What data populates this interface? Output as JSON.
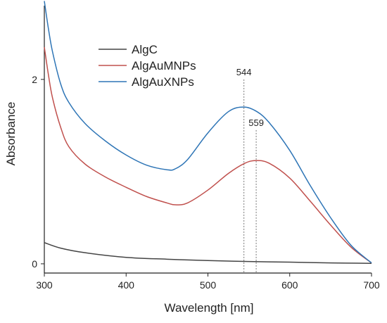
{
  "chart_data": {
    "type": "line",
    "title": "",
    "xlabel": "Wavelength [nm]",
    "ylabel": "Absorbance",
    "xlim": [
      300,
      700
    ],
    "ylim": [
      -0.1,
      2.8
    ],
    "xticks": [
      300,
      400,
      500,
      600,
      700
    ],
    "yticks": [
      0,
      2
    ],
    "grid": false,
    "legend_position": "top-center",
    "series": [
      {
        "name": "AlgC",
        "color": "#444444",
        "x": [
          300,
          320,
          350,
          400,
          450,
          500,
          550,
          600,
          650,
          700
        ],
        "y": [
          0.23,
          0.17,
          0.12,
          0.07,
          0.05,
          0.035,
          0.025,
          0.018,
          0.01,
          0.005
        ]
      },
      {
        "name": "AlgAuMNPs",
        "color": "#c0504d",
        "x": [
          300,
          305,
          310,
          320,
          330,
          350,
          375,
          400,
          425,
          450,
          460,
          475,
          500,
          525,
          545,
          559,
          575,
          600,
          625,
          650,
          675,
          700
        ],
        "y": [
          2.35,
          2.05,
          1.8,
          1.48,
          1.27,
          1.08,
          0.94,
          0.83,
          0.73,
          0.66,
          0.64,
          0.66,
          0.8,
          0.98,
          1.09,
          1.12,
          1.09,
          0.93,
          0.68,
          0.42,
          0.18,
          0.01
        ]
      },
      {
        "name": "AlgAuXNPs",
        "color": "#2e75b6",
        "x": [
          300,
          305,
          310,
          320,
          330,
          350,
          375,
          400,
          425,
          450,
          460,
          475,
          500,
          525,
          544,
          560,
          575,
          600,
          625,
          650,
          675,
          700
        ],
        "y": [
          2.85,
          2.55,
          2.3,
          1.95,
          1.75,
          1.52,
          1.33,
          1.18,
          1.07,
          1.02,
          1.03,
          1.13,
          1.42,
          1.65,
          1.7,
          1.65,
          1.53,
          1.23,
          0.85,
          0.5,
          0.2,
          0.01
        ]
      }
    ],
    "annotations": [
      {
        "text": "544",
        "x": 544,
        "y_top": 2.0
      },
      {
        "text": "559",
        "x": 559,
        "y_top": 1.45
      }
    ]
  }
}
